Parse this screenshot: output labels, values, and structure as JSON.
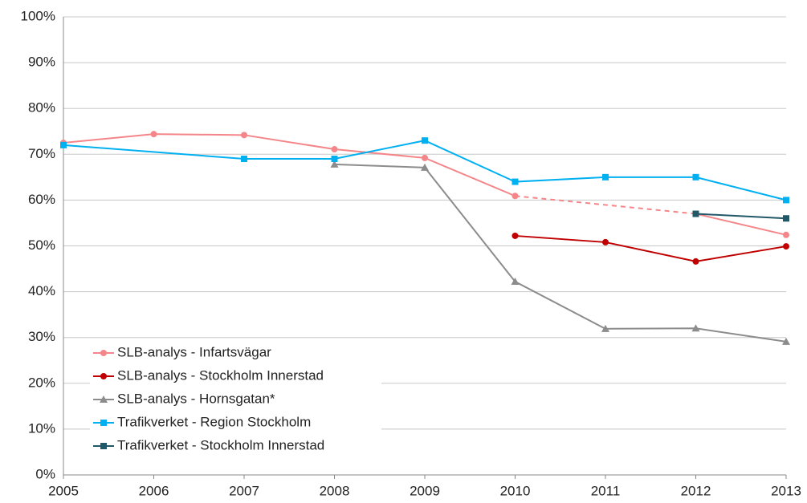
{
  "chart_data": {
    "type": "line",
    "x": [
      "2005",
      "2006",
      "2007",
      "2008",
      "2009",
      "2010",
      "2011",
      "2012",
      "2013"
    ],
    "ylim": [
      0,
      100
    ],
    "yticks": [
      {
        "value": 0,
        "label": "0%"
      },
      {
        "value": 10,
        "label": "10%"
      },
      {
        "value": 20,
        "label": "20%"
      },
      {
        "value": 30,
        "label": "30%"
      },
      {
        "value": 40,
        "label": "40%"
      },
      {
        "value": 50,
        "label": "50%"
      },
      {
        "value": 60,
        "label": "60%"
      },
      {
        "value": 70,
        "label": "70%"
      },
      {
        "value": 80,
        "label": "80%"
      },
      {
        "value": 90,
        "label": "90%"
      },
      {
        "value": 100,
        "label": "100%"
      }
    ],
    "grid": true,
    "legend": "lower left",
    "series": [
      {
        "name": "SLB-analys - Infartsvägar",
        "color": "#f4868a",
        "marker": "circle",
        "connect_gaps": "dashed",
        "values": [
          72.5,
          74.4,
          74.2,
          71.1,
          69.2,
          60.9,
          null,
          57,
          52.4
        ]
      },
      {
        "name": "SLB-analys - Stockholm Innerstad",
        "color": "#c00000",
        "marker": "circle",
        "values": [
          null,
          null,
          null,
          null,
          null,
          52.2,
          50.8,
          46.6,
          49.9
        ]
      },
      {
        "name": "SLB-analys - Hornsgatan*",
        "color": "#8c8c8c",
        "marker": "triangle",
        "values": [
          null,
          null,
          null,
          67.8,
          67.1,
          42.2,
          31.9,
          32.0,
          29.1
        ]
      },
      {
        "name": "Trafikverket - Region Stockholm",
        "color": "#00b0f0",
        "marker": "square",
        "connect_gaps": "solid",
        "values": [
          72,
          null,
          69,
          69,
          73,
          64,
          65,
          65,
          60
        ]
      },
      {
        "name": "Trafikverket - Stockholm Innerstad",
        "color": "#215868",
        "marker": "square",
        "values": [
          null,
          null,
          null,
          null,
          null,
          null,
          null,
          57,
          56
        ]
      }
    ]
  }
}
